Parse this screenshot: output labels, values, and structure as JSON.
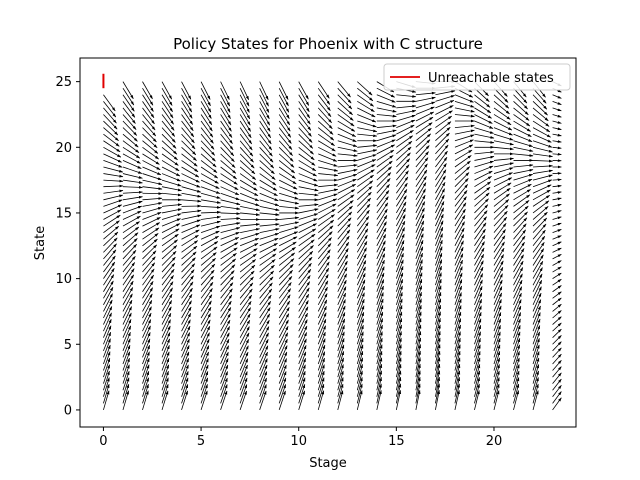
{
  "chart_data": {
    "type": "quiver",
    "title": "Policy States for Phoenix with C structure",
    "xlabel": "Stage",
    "ylabel": "State",
    "xlim": [
      -1.2,
      24.2
    ],
    "ylim": [
      -1.3,
      26.8
    ],
    "xticks": [
      0,
      5,
      10,
      15,
      20
    ],
    "yticks": [
      0,
      5,
      10,
      15,
      20,
      25
    ],
    "x_tick_labels": [
      "0",
      "5",
      "10",
      "15",
      "20"
    ],
    "y_tick_labels": [
      "0",
      "5",
      "10",
      "15",
      "20",
      "25"
    ],
    "grid": false,
    "legend": {
      "position": "top-right",
      "entries": [
        {
          "label": "Unreachable states",
          "color": "#e00000"
        }
      ]
    },
    "vector_color": "#000000",
    "stages": [
      0,
      1,
      2,
      3,
      4,
      5,
      6,
      7,
      8,
      9,
      10,
      11,
      12,
      13,
      14,
      15,
      16,
      17,
      18,
      19,
      20,
      21,
      22,
      23
    ],
    "states": [
      0,
      0.5,
      1,
      1.5,
      2,
      2.5,
      3,
      3.5,
      4,
      4.5,
      5,
      5.5,
      6,
      6.5,
      7,
      7.5,
      8,
      8.5,
      9,
      9.5,
      10,
      10.5,
      11,
      11.5,
      12,
      12.5,
      13,
      13.5,
      14,
      14.5,
      15,
      15.5,
      16,
      16.5,
      17,
      17.5,
      18,
      18.5,
      19,
      19.5,
      20,
      20.5,
      21,
      21.5,
      22,
      22.5,
      23,
      23.5,
      24,
      24.5,
      25
    ],
    "max_state_by_stage": [
      25,
      25,
      25,
      25,
      25,
      25,
      25,
      25,
      25,
      25,
      25,
      25,
      25,
      25,
      25,
      25,
      25,
      25,
      25,
      25,
      25,
      25,
      25,
      25
    ],
    "flow_regions": [
      {
        "stages": [
          0,
          6
        ],
        "description": "states above ~17 flow down toward ~17; states below flow up gently"
      },
      {
        "stages": [
          7,
          12
        ],
        "description": "top row flows horizontally at 25; others converge upward to a rising ridge"
      },
      {
        "stages": [
          13,
          17
        ],
        "description": "steep upward flows from low states; converge near 22-23"
      },
      {
        "stages": [
          18,
          23
        ],
        "description": "low states flow to 0; high states flow down toward ~18"
      }
    ],
    "convergence_points": [
      {
        "stage": 0,
        "state": 17.2
      },
      {
        "stage": 1,
        "state": 16.8
      },
      {
        "stage": 2,
        "state": 16.4
      },
      {
        "stage": 3,
        "state": 16.0
      },
      {
        "stage": 4,
        "state": 15.6
      },
      {
        "stage": 5,
        "state": 15.2
      },
      {
        "stage": 6,
        "state": 14.8
      },
      {
        "stage": 7,
        "state": 14.5
      },
      {
        "stage": 8,
        "state": 14.5
      },
      {
        "stage": 9,
        "state": 15.0
      },
      {
        "stage": 10,
        "state": 16.0
      },
      {
        "stage": 11,
        "state": 17.5
      },
      {
        "stage": 12,
        "state": 19.0
      },
      {
        "stage": 13,
        "state": 20.5
      },
      {
        "stage": 14,
        "state": 22.0
      },
      {
        "stage": 15,
        "state": 23.5
      },
      {
        "stage": 16,
        "state": 24.5
      },
      {
        "stage": 17,
        "state": 25.0
      },
      {
        "stage": 18,
        "state": 22.0
      },
      {
        "stage": 19,
        "state": 20.0
      },
      {
        "stage": 20,
        "state": 19.5
      },
      {
        "stage": 21,
        "state": 19.0
      },
      {
        "stage": 22,
        "state": 18.8
      },
      {
        "stage": 23,
        "state": 18.5
      }
    ],
    "unreachable_segment": {
      "stage": 0,
      "state_from": 24.5,
      "state_to": 25.6
    }
  }
}
